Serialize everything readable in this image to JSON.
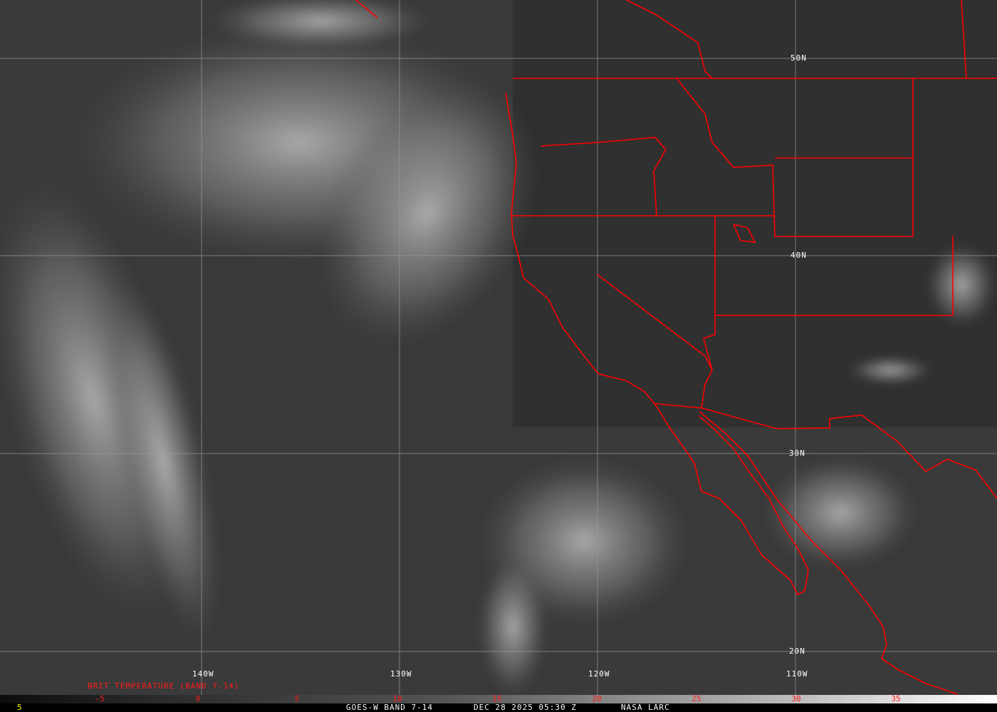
{
  "map": {
    "satellite": "GOES-W",
    "lat_labels": [
      "50N",
      "40N",
      "30N",
      "20N"
    ],
    "lon_labels": [
      "140W",
      "130W",
      "120W",
      "110W"
    ],
    "colors": {
      "background": "#3a3a3a",
      "borders": "#ff0000",
      "grid": "#9a9a9a",
      "labels": "#ffffff"
    }
  },
  "legend": {
    "title": "BRIT TEMPERATURE (BAND 7-14)",
    "ticks": [
      "-5",
      "0",
      "5",
      "10",
      "15",
      "20",
      "25",
      "30",
      "35"
    ],
    "left_value": "5"
  },
  "footer": {
    "band": "GOES-W BAND 7-14",
    "datetime": "DEC 28 2025 05:30 Z",
    "source": "NASA LARC"
  }
}
